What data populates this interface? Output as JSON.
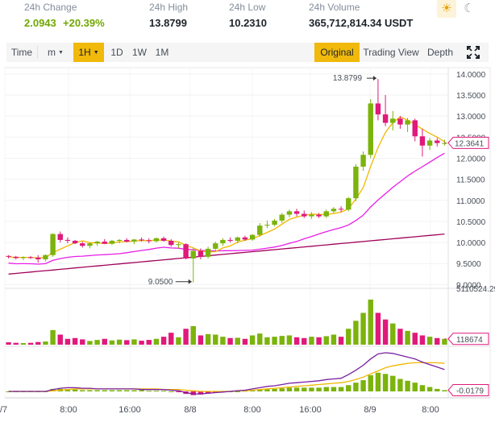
{
  "stats": {
    "change": {
      "label": "24h Change",
      "value": "2.0943",
      "pct": "+20.39%"
    },
    "high": {
      "label": "24h High",
      "value": "13.8799"
    },
    "low": {
      "label": "24h Low",
      "value": "10.2310"
    },
    "volume": {
      "label": "24h Volume",
      "value": "365,712,814.34 USDT"
    }
  },
  "theme": {
    "light_icon": "☀",
    "dark_icon": "☾"
  },
  "toolbar": {
    "time": "Time",
    "m": "m",
    "h1": "1H",
    "d1": "1D",
    "w1": "1W",
    "M1": "1M",
    "original": "Original",
    "trading_view": "Trading View",
    "depth": "Depth",
    "fullscreen_icon": "fullscreen-icon"
  },
  "colors": {
    "up": "#7cb30c",
    "down": "#e0197a",
    "ma_short": "#f0b800",
    "ma_mid": "#e81ee8",
    "ma_long": "#a0005a",
    "macd_dif": "#7a1fa2",
    "macd_dea": "#f0b800",
    "accent": "#f0b90b"
  },
  "chart_data": {
    "type": "candlestick",
    "price_axis": [
      "14.0000",
      "13.5000",
      "13.0000",
      "12.5000",
      "12.0000",
      "11.5000",
      "11.0000",
      "10.5000",
      "10.0000",
      "9.5000",
      "9.0000"
    ],
    "ylim": [
      8.95,
      14.15
    ],
    "time_axis": [
      "/7",
      "8:00",
      "16:00",
      "8/8",
      "8:00",
      "16:00",
      "8/9",
      "8:00"
    ],
    "last_price": "12.3641",
    "high_annotation": "13.8799",
    "low_annotation": "9.0500",
    "volume_max_label": "5110524.29",
    "volume_last_label": "118674",
    "macd_last_label": "-0.0179",
    "candles": [
      [
        9.68,
        9.7,
        9.62,
        9.66
      ],
      [
        9.66,
        9.68,
        9.6,
        9.63
      ],
      [
        9.63,
        9.67,
        9.58,
        9.65
      ],
      [
        9.65,
        9.68,
        9.61,
        9.64
      ],
      [
        9.64,
        9.7,
        9.52,
        9.6
      ],
      [
        9.6,
        9.72,
        9.55,
        9.7
      ],
      [
        9.7,
        10.22,
        9.66,
        10.2
      ],
      [
        10.2,
        10.26,
        10.0,
        10.06
      ],
      [
        10.06,
        10.12,
        9.98,
        10.04
      ],
      [
        10.04,
        10.06,
        9.96,
        9.98
      ],
      [
        9.98,
        10.02,
        9.88,
        9.92
      ],
      [
        9.92,
        10.0,
        9.86,
        9.98
      ],
      [
        9.98,
        10.04,
        9.92,
        10.02
      ],
      [
        10.02,
        10.08,
        9.96,
        9.97
      ],
      [
        9.97,
        10.06,
        9.94,
        10.04
      ],
      [
        10.04,
        10.08,
        9.98,
        10.06
      ],
      [
        10.06,
        10.1,
        10.0,
        10.02
      ],
      [
        10.02,
        10.08,
        9.96,
        10.07
      ],
      [
        10.07,
        10.12,
        10.02,
        10.05
      ],
      [
        10.05,
        10.1,
        9.98,
        10.03
      ],
      [
        10.03,
        10.12,
        10.0,
        10.1
      ],
      [
        10.1,
        10.14,
        10.02,
        10.04
      ],
      [
        10.04,
        10.08,
        9.9,
        9.94
      ],
      [
        9.94,
        10.0,
        9.86,
        9.96
      ],
      [
        9.96,
        9.98,
        9.6,
        9.62
      ],
      [
        9.62,
        9.88,
        9.05,
        9.8
      ],
      [
        9.8,
        9.86,
        9.6,
        9.66
      ],
      [
        9.66,
        9.9,
        9.62,
        9.85
      ],
      [
        9.85,
        10.02,
        9.8,
        9.98
      ],
      [
        9.98,
        10.1,
        9.92,
        10.06
      ],
      [
        10.06,
        10.12,
        10.0,
        10.04
      ],
      [
        10.04,
        10.14,
        9.98,
        10.12
      ],
      [
        10.12,
        10.16,
        10.04,
        10.07
      ],
      [
        10.07,
        10.2,
        10.04,
        10.18
      ],
      [
        10.18,
        10.46,
        10.14,
        10.4
      ],
      [
        10.4,
        10.52,
        10.34,
        10.42
      ],
      [
        10.42,
        10.56,
        10.38,
        10.52
      ],
      [
        10.52,
        10.7,
        10.46,
        10.66
      ],
      [
        10.66,
        10.78,
        10.6,
        10.74
      ],
      [
        10.74,
        10.8,
        10.62,
        10.68
      ],
      [
        10.68,
        10.76,
        10.58,
        10.62
      ],
      [
        10.62,
        10.72,
        10.56,
        10.66
      ],
      [
        10.66,
        10.7,
        10.58,
        10.62
      ],
      [
        10.62,
        10.78,
        10.58,
        10.74
      ],
      [
        10.74,
        10.84,
        10.7,
        10.8
      ],
      [
        10.8,
        10.86,
        10.72,
        10.78
      ],
      [
        10.78,
        11.08,
        10.74,
        11.05
      ],
      [
        11.05,
        11.86,
        10.98,
        11.8
      ],
      [
        11.8,
        12.16,
        11.7,
        12.08
      ],
      [
        12.08,
        13.4,
        12.0,
        13.3
      ],
      [
        13.3,
        13.88,
        12.9,
        13.04
      ],
      [
        13.04,
        13.5,
        12.76,
        12.84
      ],
      [
        12.84,
        13.12,
        12.66,
        12.94
      ],
      [
        12.94,
        13.0,
        12.7,
        12.8
      ],
      [
        12.8,
        12.96,
        12.62,
        12.9
      ],
      [
        12.9,
        12.94,
        12.4,
        12.52
      ],
      [
        12.52,
        12.7,
        12.04,
        12.3
      ],
      [
        12.3,
        12.48,
        12.2,
        12.42
      ],
      [
        12.42,
        12.48,
        12.28,
        12.36
      ],
      [
        12.36,
        12.44,
        12.3,
        12.36
      ]
    ],
    "volumes": [
      9,
      7,
      6,
      7,
      10,
      12,
      55,
      38,
      22,
      25,
      20,
      14,
      18,
      22,
      16,
      19,
      17,
      20,
      15,
      18,
      22,
      30,
      45,
      28,
      60,
      70,
      35,
      40,
      38,
      30,
      25,
      26,
      22,
      35,
      42,
      28,
      30,
      33,
      35,
      28,
      25,
      30,
      28,
      32,
      38,
      30,
      60,
      90,
      120,
      170,
      120,
      95,
      80,
      60,
      52,
      45,
      35,
      30,
      25,
      22
    ],
    "macd": {
      "hist": [
        0,
        0,
        0,
        0,
        0,
        0,
        4,
        4,
        4,
        3,
        2,
        2,
        2,
        2,
        2,
        2,
        2,
        2,
        2,
        1,
        1,
        1,
        0,
        -1,
        -4,
        -6,
        -5,
        -3,
        -2,
        -1,
        0,
        0,
        1,
        2,
        3,
        4,
        4,
        5,
        6,
        6,
        6,
        6,
        6,
        7,
        7,
        7,
        10,
        14,
        18,
        26,
        30,
        28,
        25,
        20,
        17,
        14,
        10,
        7,
        4,
        2
      ],
      "dif": [
        0,
        0,
        0,
        0,
        0,
        0,
        3,
        5,
        6,
        6,
        5,
        5,
        4,
        4,
        4,
        4,
        4,
        4,
        3,
        3,
        3,
        3,
        2,
        1,
        -2,
        -4,
        -4,
        -3,
        -2,
        -1,
        0,
        1,
        2,
        4,
        6,
        8,
        9,
        11,
        13,
        14,
        15,
        16,
        17,
        19,
        20,
        21,
        27,
        34,
        42,
        52,
        60,
        62,
        61,
        58,
        55,
        52,
        47,
        43,
        39,
        35
      ],
      "dea": [
        0,
        0,
        0,
        0,
        0,
        0,
        1,
        2,
        3,
        4,
        4,
        4,
        4,
        4,
        4,
        4,
        4,
        4,
        4,
        4,
        4,
        3,
        3,
        3,
        2,
        1,
        0,
        0,
        0,
        0,
        0,
        1,
        1,
        2,
        3,
        4,
        5,
        6,
        7,
        8,
        9,
        10,
        11,
        12,
        13,
        14,
        16,
        19,
        23,
        28,
        33,
        38,
        41,
        43,
        45,
        46,
        46,
        46,
        46,
        45
      ]
    }
  }
}
